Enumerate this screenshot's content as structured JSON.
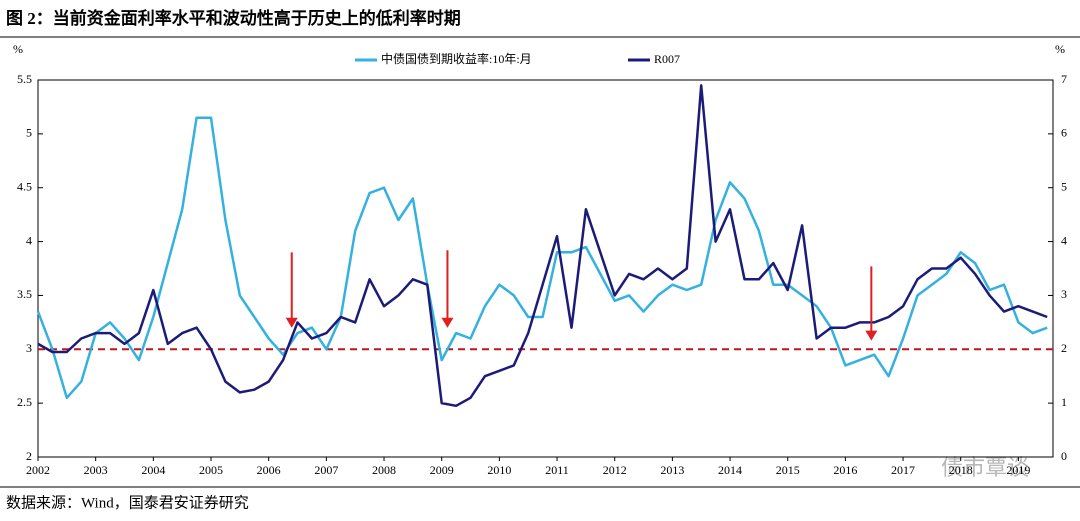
{
  "header": {
    "title": "图 2：当前资金面利率水平和波动性高于历史上的低利率时期"
  },
  "source": "数据来源：Wind，国泰君安证券研究",
  "watermark": "债市覃谈",
  "chart_data": {
    "type": "line",
    "y_unit": "%",
    "y2_unit": "%",
    "x": [
      2002,
      2002.25,
      2002.5,
      2002.75,
      2003,
      2003.25,
      2003.5,
      2003.75,
      2004,
      2004.25,
      2004.5,
      2004.75,
      2005,
      2005.25,
      2005.5,
      2005.75,
      2006,
      2006.25,
      2006.5,
      2006.75,
      2007,
      2007.25,
      2007.5,
      2007.75,
      2008,
      2008.25,
      2008.5,
      2008.75,
      2009,
      2009.25,
      2009.5,
      2009.75,
      2010,
      2010.25,
      2010.5,
      2010.75,
      2011,
      2011.25,
      2011.5,
      2011.75,
      2012,
      2012.25,
      2012.5,
      2012.75,
      2013,
      2013.25,
      2013.5,
      2013.75,
      2014,
      2014.25,
      2014.5,
      2014.75,
      2015,
      2015.25,
      2015.5,
      2015.75,
      2016,
      2016.25,
      2016.5,
      2016.75,
      2017,
      2017.25,
      2017.5,
      2017.75,
      2018,
      2018.25,
      2018.5,
      2018.75,
      2019,
      2019.25,
      2019.5
    ],
    "series": [
      {
        "name": "中债国债到期收益率:10年:月",
        "color": "#35b1e0",
        "axis": "y",
        "values": [
          3.35,
          3.0,
          2.55,
          2.7,
          3.15,
          3.25,
          3.1,
          2.9,
          3.3,
          3.8,
          4.3,
          5.15,
          5.15,
          4.2,
          3.5,
          3.3,
          3.1,
          2.95,
          3.15,
          3.2,
          3.0,
          3.3,
          4.1,
          4.45,
          4.5,
          4.2,
          4.4,
          3.6,
          2.9,
          3.15,
          3.1,
          3.4,
          3.6,
          3.5,
          3.3,
          3.3,
          3.9,
          3.9,
          3.95,
          3.7,
          3.45,
          3.5,
          3.35,
          3.5,
          3.6,
          3.55,
          3.6,
          4.2,
          4.55,
          4.4,
          4.1,
          3.6,
          3.6,
          3.5,
          3.4,
          3.2,
          2.85,
          2.9,
          2.95,
          2.75,
          3.1,
          3.5,
          3.6,
          3.7,
          3.9,
          3.8,
          3.55,
          3.6,
          3.25,
          3.15,
          3.2
        ]
      },
      {
        "name": "R007",
        "color": "#1c1c78",
        "axis": "y2",
        "values": [
          2.1,
          1.95,
          1.95,
          2.2,
          2.3,
          2.3,
          2.1,
          2.3,
          3.1,
          2.1,
          2.3,
          2.4,
          2.0,
          1.4,
          1.2,
          1.25,
          1.4,
          1.8,
          2.5,
          2.2,
          2.3,
          2.6,
          2.5,
          3.3,
          2.8,
          3.0,
          3.3,
          3.2,
          1.0,
          0.95,
          1.1,
          1.5,
          1.6,
          1.7,
          2.3,
          3.2,
          4.1,
          2.4,
          4.6,
          3.8,
          3.0,
          3.4,
          3.3,
          3.5,
          3.3,
          3.5,
          6.9,
          4.0,
          4.6,
          3.3,
          3.3,
          3.6,
          3.1,
          4.3,
          2.2,
          2.4,
          2.4,
          2.5,
          2.5,
          2.6,
          2.8,
          3.3,
          3.5,
          3.5,
          3.7,
          3.4,
          3.0,
          2.7,
          2.8,
          2.7,
          2.6
        ]
      }
    ],
    "xlim": [
      2002,
      2019.6
    ],
    "xticks": [
      2002,
      2003,
      2004,
      2005,
      2006,
      2007,
      2008,
      2009,
      2010,
      2011,
      2012,
      2013,
      2014,
      2015,
      2016,
      2017,
      2018,
      2019
    ],
    "ylim": [
      2,
      5.5
    ],
    "yticks": [
      2,
      2.5,
      3,
      3.5,
      4,
      4.5,
      5,
      5.5
    ],
    "y2lim": [
      0,
      7
    ],
    "y2ticks": [
      0,
      1,
      2,
      3,
      4,
      5,
      6,
      7
    ],
    "reference_line": {
      "value": 3,
      "color": "#c0141c"
    },
    "arrows": [
      {
        "x": 2006.4,
        "from": 3.9,
        "to": 3.2
      },
      {
        "x": 2009.1,
        "from": 3.92,
        "to": 3.2
      },
      {
        "x": 2016.45,
        "from": 3.77,
        "to": 3.08
      }
    ],
    "arrow_color": "#e02020",
    "grid": false
  }
}
